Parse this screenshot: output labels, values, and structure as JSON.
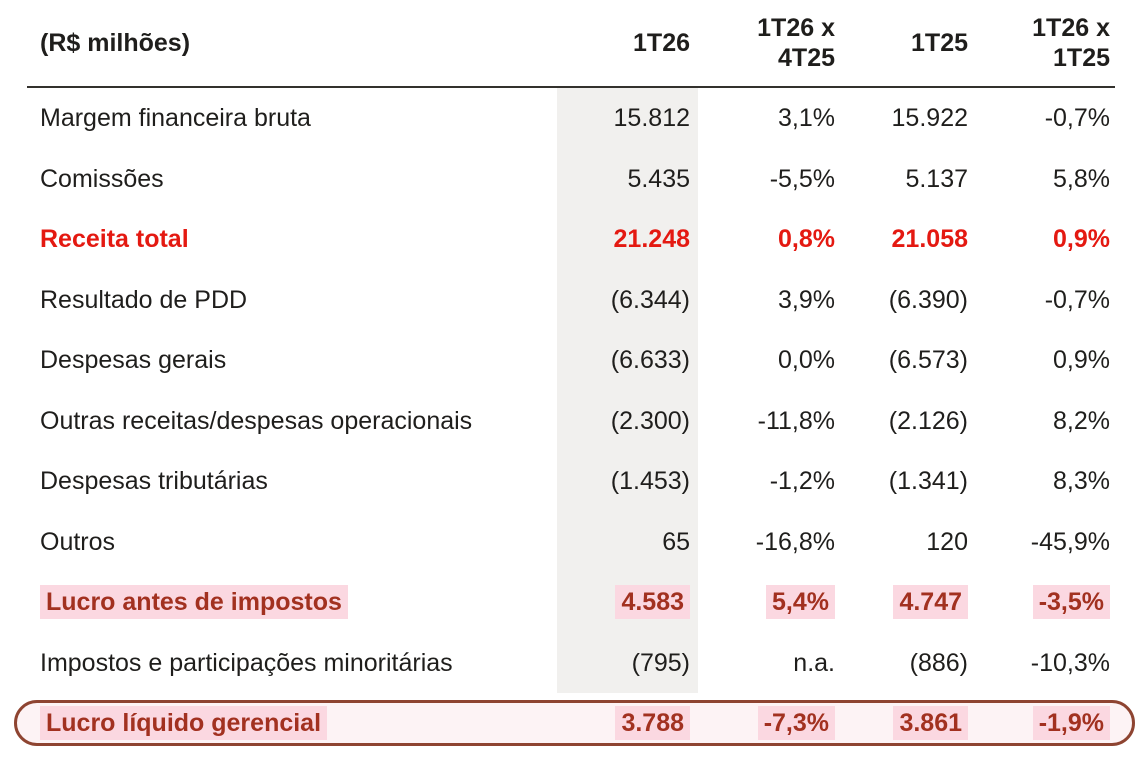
{
  "chart_data": {
    "type": "table",
    "unit_label": "(R$ milhões)",
    "columns": [
      "1T26",
      "1T26 x 4T25",
      "1T25",
      "1T26 x 1T25"
    ],
    "header_display": {
      "c1": "1T26",
      "c2_line1": "1T26 x",
      "c2_line2": "4T25",
      "c3": "1T25",
      "c4_line1": "1T26 x",
      "c4_line2": "1T25"
    },
    "rows": [
      {
        "id": "margem-financeira-bruta",
        "label": "Margem financeira bruta",
        "values": [
          "15.812",
          "3,1%",
          "15.922",
          "-0,7%"
        ],
        "style": "normal"
      },
      {
        "id": "comissoes",
        "label": "Comissões",
        "values": [
          "5.435",
          "-5,5%",
          "5.137",
          "5,8%"
        ],
        "style": "normal"
      },
      {
        "id": "receita-total",
        "label": "Receita total",
        "values": [
          "21.248",
          "0,8%",
          "21.058",
          "0,9%"
        ],
        "style": "total"
      },
      {
        "id": "resultado-de-pdd",
        "label": "Resultado de PDD",
        "values": [
          "(6.344)",
          "3,9%",
          "(6.390)",
          "-0,7%"
        ],
        "style": "normal"
      },
      {
        "id": "despesas-gerais",
        "label": "Despesas gerais",
        "values": [
          "(6.633)",
          "0,0%",
          "(6.573)",
          "0,9%"
        ],
        "style": "normal"
      },
      {
        "id": "outras-receitas-despesas-operacionais",
        "label": "Outras receitas/despesas operacionais",
        "values": [
          "(2.300)",
          "-11,8%",
          "(2.126)",
          "8,2%"
        ],
        "style": "normal"
      },
      {
        "id": "despesas-tributarias",
        "label": "Despesas tributárias",
        "values": [
          "(1.453)",
          "-1,2%",
          "(1.341)",
          "8,3%"
        ],
        "style": "normal"
      },
      {
        "id": "outros",
        "label": "Outros",
        "values": [
          "65",
          "-16,8%",
          "120",
          "-45,9%"
        ],
        "style": "normal"
      },
      {
        "id": "lucro-antes-de-impostos",
        "label": "Lucro antes de impostos",
        "values": [
          "4.583",
          "5,4%",
          "4.747",
          "-3,5%"
        ],
        "style": "subtotal"
      },
      {
        "id": "impostos-e-participacoes-minoritarias",
        "label": "Impostos e participações minoritárias",
        "values": [
          "(795)",
          "n.a.",
          "(886)",
          "-10,3%"
        ],
        "style": "normal"
      },
      {
        "id": "lucro-liquido-gerencial",
        "label": "Lucro líquido gerencial",
        "values": [
          "3.788",
          "-7,3%",
          "3.861",
          "-1,9%"
        ],
        "style": "final"
      }
    ]
  },
  "ui": {
    "colors": {
      "text": "#1f1e1c",
      "bright_red": "#e41911",
      "dark_red": "#a23120",
      "highlight_pink": "#fbd8e1",
      "final_row_bg": "#fdf3f5",
      "final_row_border": "#8e4431",
      "shaded_column": "#f1f0ee",
      "header_rule": "#33312d"
    }
  }
}
